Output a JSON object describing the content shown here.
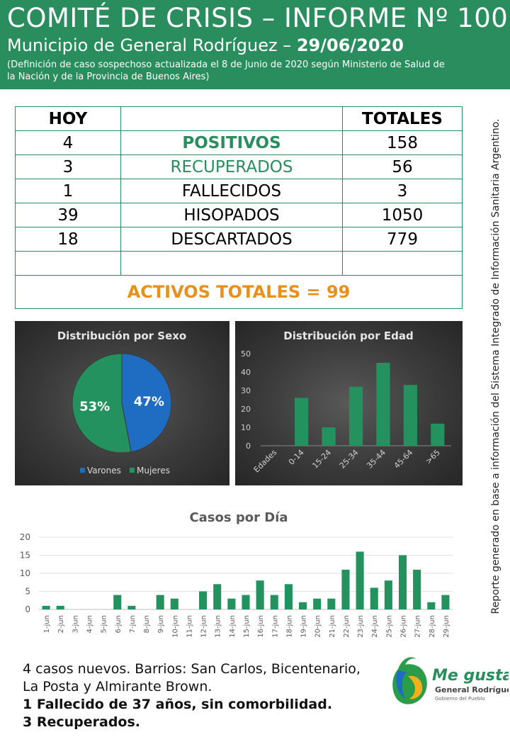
{
  "header": {
    "title": "COMITÉ DE CRISIS – INFORME Nº 100",
    "subtitle_prefix": "Municipio de General Rodríguez – ",
    "date": "29/06/2020",
    "definition_line1": "(Definición de caso sospechoso actualizada el 8 de Junio de 2020 según Ministerio de Salud de",
    "definition_line2": "la Nación y de la Provincia de Buenos Aires)"
  },
  "table": {
    "col_today": "HOY",
    "col_totals": "TOTALES",
    "rows": [
      {
        "today": "4",
        "label": "POSITIVOS",
        "total": "158"
      },
      {
        "today": "3",
        "label": "RECUPERADOS",
        "total": "56"
      },
      {
        "today": "1",
        "label": "FALLECIDOS",
        "total": "3"
      },
      {
        "today": "39",
        "label": "HISOPADOS",
        "total": "1050"
      },
      {
        "today": "18",
        "label": "DESCARTADOS",
        "total": "779"
      }
    ],
    "activos": "ACTIVOS TOTALES = 99"
  },
  "colors": {
    "green": "#2a8d5e",
    "blue": "#1f6dc2",
    "orange": "#e8901c",
    "bar_green": "#23925e"
  },
  "chart_data": [
    {
      "type": "pie",
      "title": "Distribución por Sexo",
      "categories": [
        "Varones",
        "Mujeres"
      ],
      "values": [
        47,
        53
      ],
      "labels": [
        "47%",
        "53%"
      ],
      "colors": [
        "#1f6dc2",
        "#23925e"
      ],
      "legend": "bottom"
    },
    {
      "type": "bar",
      "title": "Distribución por Edad",
      "categories": [
        "Edades",
        "0-14",
        "15-24",
        "25-34",
        "35-44",
        "45-64",
        ">65"
      ],
      "values": [
        0,
        26,
        10,
        32,
        45,
        33,
        12
      ],
      "ylim": [
        0,
        50
      ],
      "yticks": [
        0,
        10,
        20,
        30,
        40,
        50
      ],
      "grid": false
    },
    {
      "type": "bar",
      "title": "Casos por Día",
      "categories": [
        "1-jun",
        "2-jun",
        "3-jun",
        "4-jun",
        "5-jun",
        "6-jun",
        "7-jun",
        "8-jun",
        "9-jun",
        "10-jun",
        "11-jun",
        "12-jun",
        "13-jun",
        "14-jun",
        "15-jun",
        "16-jun",
        "17-jun",
        "18-jun",
        "19-jun",
        "20-jun",
        "21-jun",
        "22-jun",
        "23-jun",
        "24-jun",
        "25-jun",
        "26-jun",
        "27-jun",
        "28-jun",
        "29-jun"
      ],
      "values": [
        1,
        1,
        0,
        0,
        0,
        4,
        1,
        0,
        4,
        3,
        0,
        5,
        7,
        3,
        4,
        8,
        4,
        7,
        2,
        3,
        3,
        11,
        16,
        6,
        8,
        15,
        11,
        2,
        4
      ],
      "ylim": [
        0,
        20
      ],
      "yticks": [
        0,
        5,
        10,
        15,
        20
      ],
      "grid": true
    }
  ],
  "side_note": "Reporte generado en base a información del Sistema Integrado de Información Sanitaria Argentino.",
  "footer": {
    "line1": "4 casos nuevos. Barrios: San Carlos, Bicentenario,",
    "line2": "La Posta y Almirante Brown.",
    "line3": "1 Fallecido de 37 años, sin comorbilidad.",
    "line4": "3 Recuperados."
  },
  "logo": {
    "line1": "Me gusta",
    "line2": "General Rodríguez",
    "line3": "Gobierno del Pueblo"
  }
}
